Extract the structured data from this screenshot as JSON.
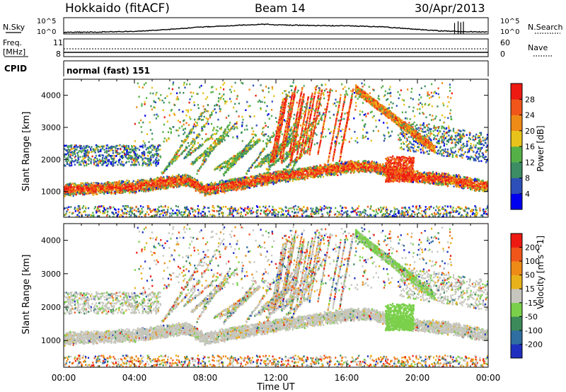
{
  "header": {
    "station": "Hokkaido (fitACF)",
    "beam": "Beam 14",
    "date": "30/Apr/2013"
  },
  "strip_labels": {
    "nsky": "N.Sky",
    "nsearch": "N.Search",
    "freq_line1": "Freq.",
    "freq_line2": "[MHz]",
    "nave": "Nave",
    "cpid": "CPID",
    "cpid_value": "normal (fast) 151",
    "exp_left_top": "10^5",
    "exp_left_bottom": "10^0",
    "exp_right_top": "10^5",
    "exp_right_bottom": "10^0",
    "freq_top": "11",
    "freq_bottom": "8",
    "nave_top": "60",
    "nave_bottom": "0"
  },
  "colorbars": {
    "power": {
      "label": "Power [dB]",
      "ticks": [
        "28",
        "24",
        "20",
        "16",
        "12",
        "8",
        "4"
      ],
      "colors": [
        "#0000ee",
        "#2c4fb8",
        "#3c8c64",
        "#56b048",
        "#e7c21a",
        "#ee8a16",
        "#f0561a",
        "#ee1a12"
      ]
    },
    "velocity": {
      "label": "Velocity [m s^-1]",
      "ticks": [
        "200",
        "100",
        "50",
        "15",
        "-15",
        "-50",
        "-100",
        "-200"
      ],
      "colors": [
        "#1f30c0",
        "#2f6ea0",
        "#3c8a5a",
        "#7ad04a",
        "#c6c6be",
        "#e7b21a",
        "#ee8a16",
        "#f0561a",
        "#ee1a12"
      ]
    }
  },
  "chart_data": [
    {
      "type": "line",
      "name": "sky-noise-strip",
      "x_unit": "hour UT",
      "x": [
        0,
        2,
        4,
        6,
        8,
        10,
        11.5,
        12,
        14,
        16,
        18,
        20,
        21.5,
        22,
        23,
        24
      ],
      "y_log10": [
        0.5,
        0.6,
        0.8,
        1.4,
        2.2,
        2.7,
        3.0,
        2.8,
        2.6,
        2.5,
        2.2,
        1.4,
        0.9,
        0.8,
        0.7,
        0.6
      ],
      "ylim_log10": [
        0,
        5
      ]
    },
    {
      "type": "heatmap",
      "name": "power-panel",
      "xlabel": "",
      "ylabel": "Slant Range [km]",
      "xlim": [
        0,
        24
      ],
      "ylim": [
        200,
        4500
      ],
      "y_ticks": [
        1000,
        2000,
        3000,
        4000
      ],
      "colorbar_ticks": [
        4,
        8,
        12,
        16,
        20,
        24,
        28
      ],
      "main_echo_band_km": {
        "x": [
          0,
          2,
          4,
          6,
          7,
          8,
          10,
          12,
          14,
          16,
          17,
          18,
          19,
          20,
          22,
          24
        ],
        "y": [
          1050,
          1100,
          1150,
          1300,
          1350,
          1050,
          1250,
          1450,
          1600,
          1750,
          1800,
          1700,
          1500,
          1450,
          1350,
          1150
        ]
      }
    },
    {
      "type": "heatmap",
      "name": "velocity-panel",
      "xlabel": "Time UT",
      "ylabel": "Slant Range [km]",
      "xlim": [
        0,
        24
      ],
      "ylim": [
        200,
        4500
      ],
      "y_ticks": [
        1000,
        2000,
        3000,
        4000
      ],
      "x_ticks": [
        "00:00",
        "04:00",
        "08:00",
        "12:00",
        "16:00",
        "20:00",
        "00:00"
      ],
      "colorbar_ticks": [
        -200,
        -100,
        -50,
        -15,
        15,
        50,
        100,
        200
      ]
    }
  ],
  "axes": {
    "y_tick_labels": [
      "1000",
      "2000",
      "3000",
      "4000"
    ],
    "x_tick_labels": [
      "00:00",
      "04:00",
      "08:00",
      "12:00",
      "16:00",
      "20:00",
      "00:00"
    ],
    "ylabel": "Slant Range [km]",
    "xlabel": "Time UT"
  }
}
